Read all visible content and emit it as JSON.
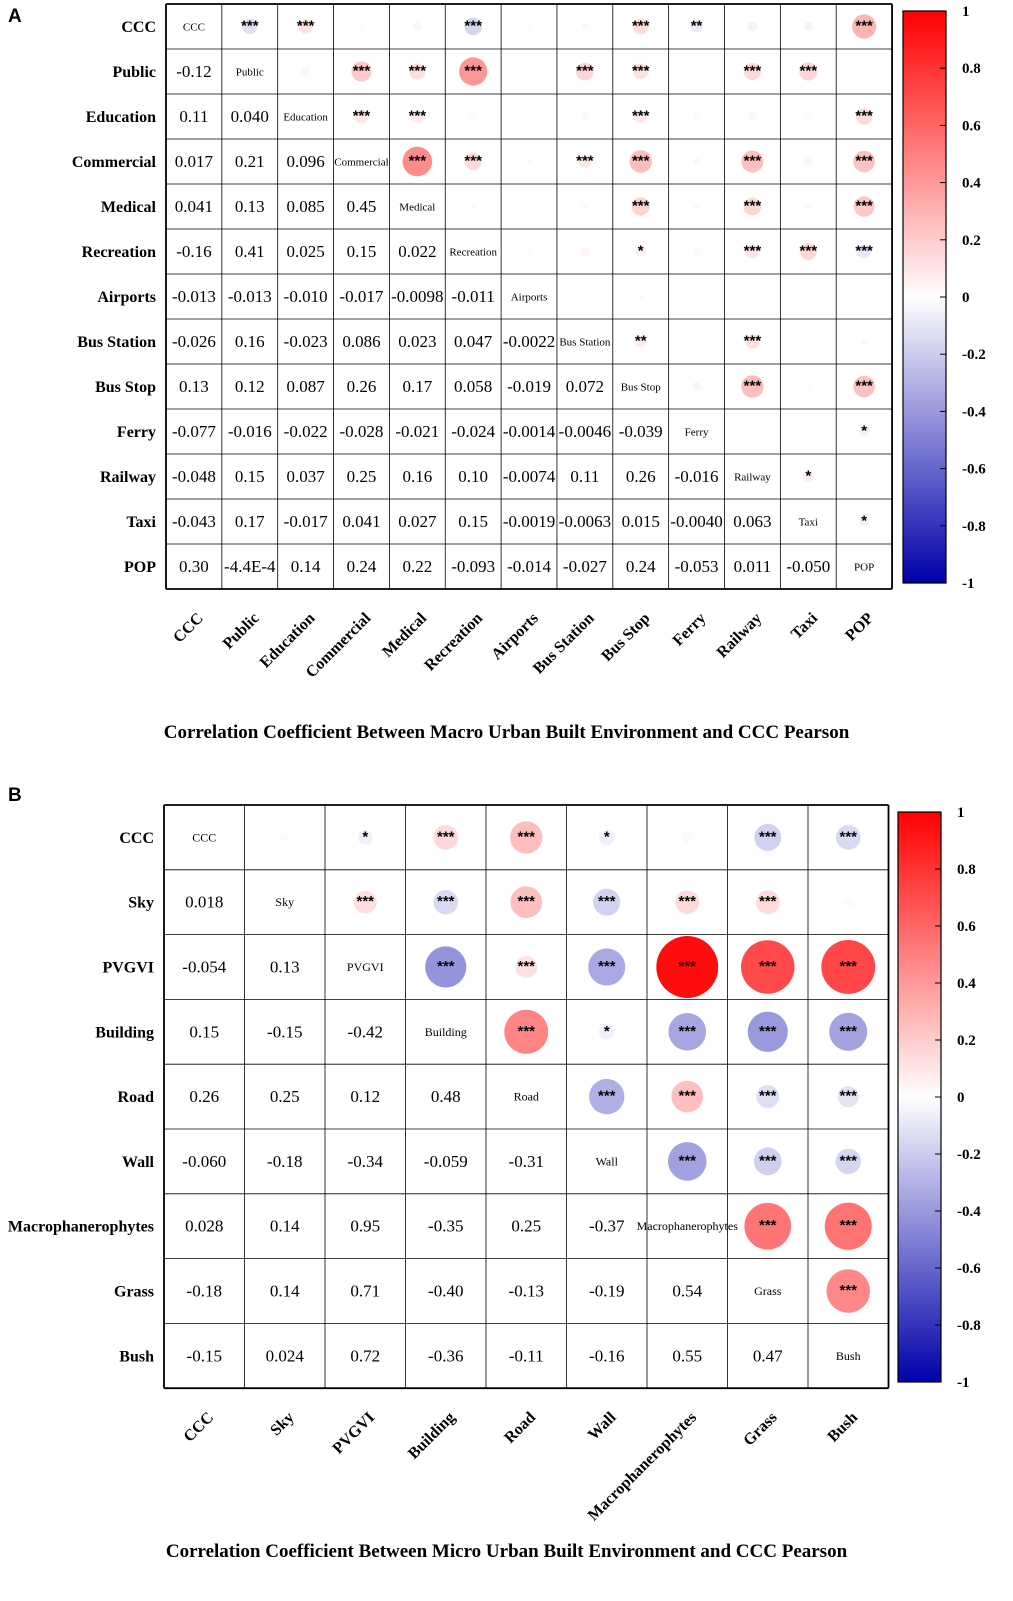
{
  "chart_data": [
    {
      "panel": "A",
      "type": "heatmap",
      "title": "Correlation Coefficient Between Macro Urban Built Environment and CCC Pearson",
      "variables": [
        "CCC",
        "Public",
        "Education",
        "Commercial",
        "Medical",
        "Recreation",
        "Airports",
        "Bus Station",
        "Bus Stop",
        "Ferry",
        "Railway",
        "Taxi",
        "POP"
      ],
      "lower_values": [
        [],
        [
          "-0.12"
        ],
        [
          "0.11",
          "0.040"
        ],
        [
          "0.017",
          "0.21",
          "0.096"
        ],
        [
          "0.041",
          "0.13",
          "0.085",
          "0.45"
        ],
        [
          "-0.16",
          "0.41",
          "0.025",
          "0.15",
          "0.022"
        ],
        [
          "-0.013",
          "-0.013",
          "-0.010",
          "-0.017",
          "-0.0098",
          "-0.011"
        ],
        [
          "-0.026",
          "0.16",
          "-0.023",
          "0.086",
          "0.023",
          "0.047",
          "-0.0022"
        ],
        [
          "0.13",
          "0.12",
          "0.087",
          "0.26",
          "0.17",
          "0.058",
          "-0.019",
          "0.072"
        ],
        [
          "-0.077",
          "-0.016",
          "-0.022",
          "-0.028",
          "-0.021",
          "-0.024",
          "-0.0014",
          "-0.0046",
          "-0.039"
        ],
        [
          "-0.048",
          "0.15",
          "0.037",
          "0.25",
          "0.16",
          "0.10",
          "-0.0074",
          "0.11",
          "0.26",
          "-0.016"
        ],
        [
          "-0.043",
          "0.17",
          "-0.017",
          "0.041",
          "0.027",
          "0.15",
          "-0.0019",
          "-0.0063",
          "0.015",
          "-0.0040",
          "0.063"
        ],
        [
          "0.30",
          "-4.4E-4",
          "0.14",
          "0.24",
          "0.22",
          "-0.093",
          "-0.014",
          "-0.027",
          "0.24",
          "-0.053",
          "0.011",
          "-0.050"
        ]
      ],
      "upper_significance": [
        [
          "0,1",
          "***"
        ],
        [
          "0,2",
          "***"
        ],
        [
          "0,5",
          "***"
        ],
        [
          "0,8",
          "***"
        ],
        [
          "0,9",
          "**"
        ],
        [
          "0,12",
          "***"
        ],
        [
          "1,3",
          "***"
        ],
        [
          "1,4",
          "***"
        ],
        [
          "1,5",
          "***"
        ],
        [
          "1,7",
          "***"
        ],
        [
          "1,8",
          "***"
        ],
        [
          "1,10",
          "***"
        ],
        [
          "1,11",
          "***"
        ],
        [
          "2,3",
          "***"
        ],
        [
          "2,4",
          "***"
        ],
        [
          "2,8",
          "***"
        ],
        [
          "2,12",
          "***"
        ],
        [
          "3,4",
          "***"
        ],
        [
          "3,5",
          "***"
        ],
        [
          "3,7",
          "***"
        ],
        [
          "3,8",
          "***"
        ],
        [
          "3,10",
          "***"
        ],
        [
          "3,12",
          "***"
        ],
        [
          "4,8",
          "***"
        ],
        [
          "4,10",
          "***"
        ],
        [
          "4,12",
          "***"
        ],
        [
          "5,8",
          "*"
        ],
        [
          "5,10",
          "***"
        ],
        [
          "5,11",
          "***"
        ],
        [
          "5,12",
          "***"
        ],
        [
          "7,8",
          "**"
        ],
        [
          "7,10",
          "***"
        ],
        [
          "8,10",
          "***"
        ],
        [
          "8,12",
          "***"
        ],
        [
          "9,12",
          "*"
        ],
        [
          "10,11",
          "*"
        ],
        [
          "11,12",
          "*"
        ]
      ],
      "colorbar": {
        "min": -1,
        "max": 1,
        "ticks": [
          "1",
          "0.8",
          "0.6",
          "0.4",
          "0.2",
          "0",
          "-0.2",
          "-0.4",
          "-0.6",
          "-0.8",
          "-1"
        ]
      }
    },
    {
      "panel": "B",
      "type": "heatmap",
      "title": "Correlation Coefficient Between Micro Urban Built Environment and CCC Pearson",
      "variables": [
        "CCC",
        "Sky",
        "PVGVI",
        "Building",
        "Road",
        "Wall",
        "Macrophanerophytes",
        "Grass",
        "Bush"
      ],
      "lower_values": [
        [],
        [
          "0.018"
        ],
        [
          "-0.054",
          "0.13"
        ],
        [
          "0.15",
          "-0.15",
          "-0.42"
        ],
        [
          "0.26",
          "0.25",
          "0.12",
          "0.48"
        ],
        [
          "-0.060",
          "-0.18",
          "-0.34",
          "-0.059",
          "-0.31"
        ],
        [
          "0.028",
          "0.14",
          "0.95",
          "-0.35",
          "0.25",
          "-0.37"
        ],
        [
          "-0.18",
          "0.14",
          "0.71",
          "-0.40",
          "-0.13",
          "-0.19",
          "0.54"
        ],
        [
          "-0.15",
          "0.024",
          "0.72",
          "-0.36",
          "-0.11",
          "-0.16",
          "0.55",
          "0.47"
        ]
      ],
      "upper_significance": [
        [
          "0,2",
          "*"
        ],
        [
          "0,3",
          "***"
        ],
        [
          "0,4",
          "***"
        ],
        [
          "0,5",
          "*"
        ],
        [
          "0,7",
          "***"
        ],
        [
          "0,8",
          "***"
        ],
        [
          "1,2",
          "***"
        ],
        [
          "1,3",
          "***"
        ],
        [
          "1,4",
          "***"
        ],
        [
          "1,5",
          "***"
        ],
        [
          "1,6",
          "***"
        ],
        [
          "1,7",
          "***"
        ],
        [
          "2,3",
          "***"
        ],
        [
          "2,4",
          "***"
        ],
        [
          "2,5",
          "***"
        ],
        [
          "2,6",
          "***"
        ],
        [
          "2,7",
          "***"
        ],
        [
          "2,8",
          "***"
        ],
        [
          "3,4",
          "***"
        ],
        [
          "3,5",
          "*"
        ],
        [
          "3,6",
          "***"
        ],
        [
          "3,7",
          "***"
        ],
        [
          "3,8",
          "***"
        ],
        [
          "4,5",
          "***"
        ],
        [
          "4,6",
          "***"
        ],
        [
          "4,7",
          "***"
        ],
        [
          "4,8",
          "***"
        ],
        [
          "5,6",
          "***"
        ],
        [
          "5,7",
          "***"
        ],
        [
          "5,8",
          "***"
        ],
        [
          "6,7",
          "***"
        ],
        [
          "6,8",
          "***"
        ],
        [
          "7,8",
          "***"
        ]
      ],
      "colorbar": {
        "min": -1,
        "max": 1,
        "ticks": [
          "1",
          "0.8",
          "0.6",
          "0.4",
          "0.2",
          "0",
          "-0.2",
          "-0.4",
          "-0.6",
          "-0.8",
          "-1"
        ]
      }
    }
  ],
  "labels": {
    "panel_a": "A",
    "panel_b": "B"
  },
  "colors": {
    "positive": "#ff0000",
    "negative": "#0000cc",
    "neutral": "#ffffff",
    "grid": "#000000"
  }
}
